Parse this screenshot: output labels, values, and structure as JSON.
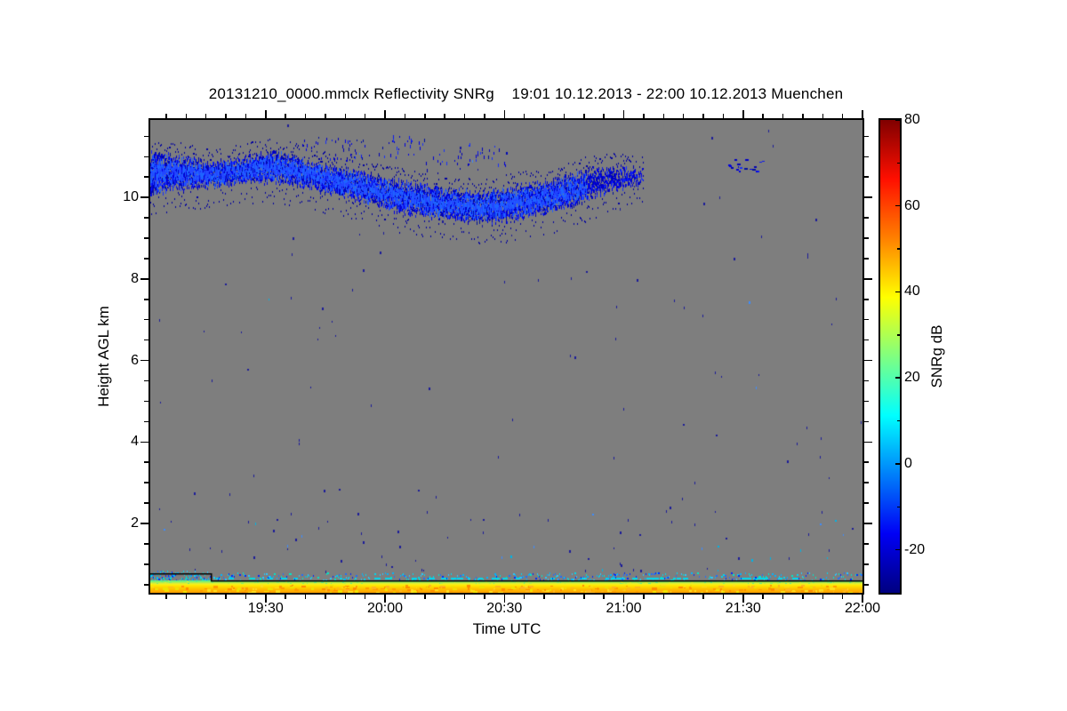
{
  "chart_data": {
    "type": "heatmap",
    "title": "20131210_0000.mmclx Reflectivity SNRg    19:01 10.12.2013 - 22:00 10.12.2013 Muenchen",
    "source_file": "20131210_0000.mmclx",
    "product": "Reflectivity SNRg",
    "station": "Muenchen",
    "time_range": {
      "start": "19:01 10.12.2013",
      "end": "22:00 10.12.2013",
      "duration_min": 179
    },
    "xlabel": "Time UTC",
    "ylabel": "Height AGL km",
    "colorbar_label": "SNRg dB",
    "x_axis": {
      "major_ticks": [
        {
          "t_min": 29,
          "label": "19:30"
        },
        {
          "t_min": 59,
          "label": "20:00"
        },
        {
          "t_min": 89,
          "label": "20:30"
        },
        {
          "t_min": 119,
          "label": "21:00"
        },
        {
          "t_min": 149,
          "label": "21:30"
        },
        {
          "t_min": 179,
          "label": "22:00"
        }
      ],
      "minor_step_min": 5,
      "minor_start_min": 4
    },
    "y_axis": {
      "range_km": [
        0.3,
        11.9
      ],
      "major_ticks_km": [
        2,
        4,
        6,
        8,
        10
      ],
      "minor_step_km": 0.5
    },
    "colorbar": {
      "range_db": [
        -30,
        80
      ],
      "major_ticks_db": [
        80,
        60,
        40,
        20,
        0,
        -20
      ],
      "minor_ticks_db": [
        70,
        50,
        30,
        10,
        -10
      ],
      "colormap": "jet",
      "gradient_stops": [
        [
          "#000080",
          0
        ],
        [
          "#0000f5",
          0.125
        ],
        [
          "#00ffff",
          0.375
        ],
        [
          "#80ff80",
          0.5
        ],
        [
          "#ffff00",
          0.625
        ],
        [
          "#ff8000",
          0.75
        ],
        [
          "#ff0f00",
          0.875
        ],
        [
          "#800000",
          1
        ]
      ]
    },
    "no_data_color": "#7e7e7e",
    "seed": 20131210,
    "features": {
      "cirrus_layer": {
        "description": "speckled ice-cloud band, SNR about -25 to -10 dB (blue)",
        "profile_t_base_top_density": [
          [
            0,
            10.0,
            11.15,
            0.9
          ],
          [
            8,
            10.15,
            11.05,
            0.85
          ],
          [
            15,
            10.2,
            10.9,
            0.8
          ],
          [
            22,
            10.3,
            11.0,
            0.8
          ],
          [
            31,
            10.3,
            11.2,
            0.8
          ],
          [
            38,
            10.2,
            11.0,
            0.85
          ],
          [
            45,
            10.05,
            10.8,
            0.85
          ],
          [
            52,
            9.9,
            10.7,
            0.8
          ],
          [
            58,
            9.7,
            10.55,
            0.8
          ],
          [
            64,
            9.55,
            10.45,
            0.8
          ],
          [
            70,
            9.45,
            10.35,
            0.85
          ],
          [
            76,
            9.4,
            10.25,
            0.88
          ],
          [
            83,
            9.32,
            10.15,
            0.9
          ],
          [
            90,
            9.35,
            10.3,
            0.88
          ],
          [
            97,
            9.5,
            10.4,
            0.85
          ],
          [
            104,
            9.65,
            10.55,
            0.8
          ],
          [
            111,
            9.9,
            10.75,
            0.7
          ],
          [
            117,
            10.1,
            10.8,
            0.55
          ],
          [
            124,
            10.3,
            10.75,
            0.3
          ]
        ],
        "upper_patches_t0_t1_base_top_density": [
          [
            38,
            54,
            10.9,
            11.5,
            0.4
          ],
          [
            55,
            60,
            11.0,
            11.4,
            0.18
          ],
          [
            60,
            69,
            11.0,
            11.55,
            0.4
          ],
          [
            69,
            80,
            10.7,
            11.2,
            0.22
          ],
          [
            80,
            90,
            10.8,
            11.35,
            0.28
          ]
        ],
        "late_patch_t0_t1_base_top_density": [
          145,
          156,
          10.65,
          10.95,
          0.35
        ]
      },
      "ground_clutter_band_km": [
        0.3,
        0.52
      ],
      "green_layer_km": [
        0.52,
        0.615
      ],
      "speckle_band": {
        "band_km": [
          0.62,
          0.8
        ],
        "density": 0.5,
        "dense_until_min": 15,
        "dense_density": 0.8
      },
      "step_line": {
        "level_before_km": 0.78,
        "level_after_km": 0.615,
        "step_at_min": 15.2
      },
      "noise_specks": {
        "uniform_count": 120,
        "low_region_count": 58
      }
    },
    "palette": {
      "cloud": [
        "#0000d2",
        "#0000e8",
        "#0a18f0",
        "#0000b4",
        "#1830fa",
        "#0000c0",
        "#000f9f",
        "#0000e0"
      ],
      "cloud_bright": [
        "#2446ff",
        "#1e64ff"
      ],
      "cloud_dark": "#0000a0",
      "speck": "#1c1c99",
      "speck_cyan": [
        "#00b4e6",
        "#3c8cff"
      ],
      "ground_speckles": [
        "#00d8ee",
        "#00b4ff",
        "#1e6eff",
        "#00e6c8",
        "#0028ff",
        "#28c8ff"
      ],
      "green_rows": [
        "#5fe98c",
        "#82ef6e",
        "#b0ef50",
        "#dcee34"
      ],
      "yellow_rows": [
        "#f4ef1e",
        "#ffec00",
        "#ffe000",
        "#ffd600",
        "#ffcc00",
        "#ffc300",
        "#ffbb00",
        "#ffb200",
        "#ffaa00",
        "#ffa200"
      ],
      "mottle": [
        "#ff9b00",
        "#ffb61e",
        "#ffdd1e",
        "#f0e200",
        "#ff8c00"
      ]
    }
  }
}
